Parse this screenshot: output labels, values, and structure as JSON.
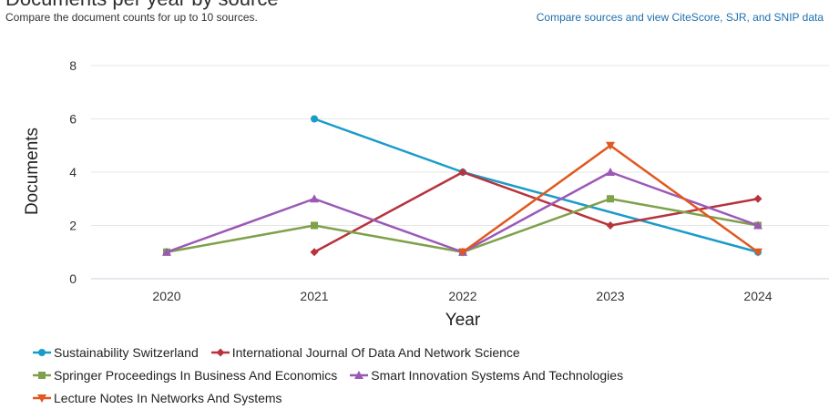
{
  "header": {
    "title": "Documents per year by source",
    "subtitle": "Compare the document counts for up to 10 sources.",
    "compare_link": "Compare sources and view CiteScore, SJR, and SNIP data"
  },
  "chart_data": {
    "type": "line",
    "title": "Documents per year by source",
    "xlabel": "Year",
    "ylabel": "Documents",
    "categories": [
      2020,
      2021,
      2022,
      2023,
      2024
    ],
    "xticks": [
      "2020",
      "2021",
      "2022",
      "2023",
      "2024"
    ],
    "yticks": [
      "0",
      "2",
      "4",
      "6",
      "8"
    ],
    "ylim": [
      0,
      8
    ],
    "grid": true,
    "legend_position": "bottom-left",
    "series": [
      {
        "name": "Sustainability Switzerland",
        "color": "#1a9cc9",
        "marker": "circle",
        "values": [
          null,
          6,
          4,
          null,
          1
        ]
      },
      {
        "name": "International Journal Of Data And Network Science",
        "color": "#b8333b",
        "marker": "diamond",
        "values": [
          null,
          1,
          4,
          2,
          3
        ]
      },
      {
        "name": "Springer Proceedings In Business And Economics",
        "color": "#7ea14a",
        "marker": "square",
        "values": [
          1,
          2,
          1,
          3,
          2
        ]
      },
      {
        "name": "Smart Innovation Systems And Technologies",
        "color": "#9b59b6",
        "marker": "triangle",
        "values": [
          1,
          3,
          1,
          4,
          2
        ]
      },
      {
        "name": "Lecture Notes In Networks And Systems",
        "color": "#e0591f",
        "marker": "triangle-down",
        "values": [
          null,
          null,
          1,
          5,
          1
        ]
      }
    ]
  }
}
